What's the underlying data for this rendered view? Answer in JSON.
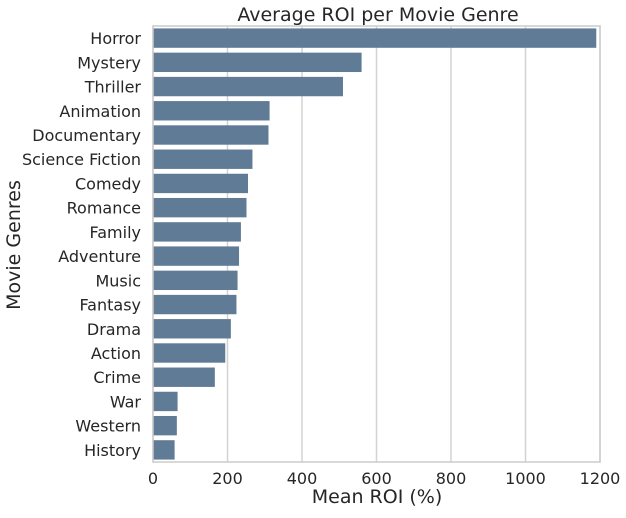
{
  "chart_data": {
    "type": "bar",
    "orientation": "horizontal",
    "title": "Average ROI per Movie Genre",
    "xlabel": "Mean ROI (%)",
    "ylabel": "Movie Genres",
    "xlim": [
      0,
      1200
    ],
    "xticks": [
      "0",
      "200",
      "400",
      "600",
      "800",
      "1000",
      "1200"
    ],
    "xtick_values": [
      0,
      200,
      400,
      600,
      800,
      1000,
      1200
    ],
    "grid": "vertical",
    "categories": [
      "Horror",
      "Mystery",
      "Thriller",
      "Animation",
      "Documentary",
      "Science Fiction",
      "Comedy",
      "Romance",
      "Family",
      "Adventure",
      "Music",
      "Fantasy",
      "Drama",
      "Action",
      "Crime",
      "War",
      "Western",
      "History"
    ],
    "values": [
      1190,
      560,
      510,
      313,
      310,
      267,
      255,
      251,
      236,
      231,
      227,
      224,
      209,
      194,
      166,
      66,
      64,
      58
    ],
    "colors": {
      "bar": "#5f7b95",
      "grid": "#d3d3d3",
      "frame": "#cccccc",
      "text": "#262626"
    }
  }
}
